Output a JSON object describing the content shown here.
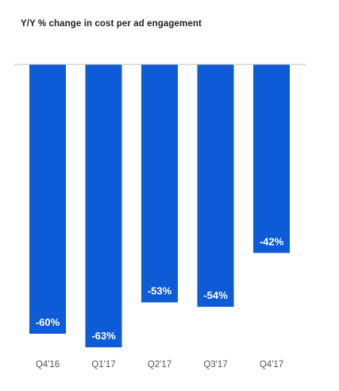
{
  "chart_data": {
    "type": "bar",
    "title": "Y/Y % change in cost per ad engagement",
    "categories": [
      "Q4'16",
      "Q1'17",
      "Q2'17",
      "Q3'17",
      "Q4'17"
    ],
    "values": [
      -60,
      -63,
      -53,
      -54,
      -42
    ],
    "value_labels": [
      "-60%",
      "-63%",
      "-53%",
      "-54%",
      "-42%"
    ],
    "xlabel": "",
    "ylabel": "",
    "ylim": [
      -70,
      0
    ],
    "grid": false,
    "bar_color": "#0d5bd6",
    "baseline_color": "#bdbdbd"
  }
}
